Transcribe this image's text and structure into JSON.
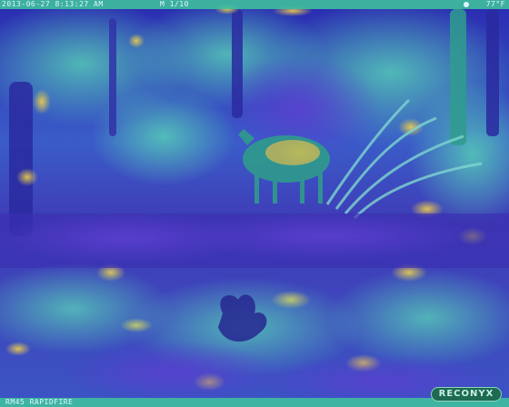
{
  "overlay": {
    "timestamp": "2013-06-27 8:13:27 AM",
    "frame_counter": "M 1/10",
    "temperature": "77°F",
    "moon_phase_icon": "moon-icon",
    "camera_model": "RM45 RAPIDFIRE",
    "brand_logo": "RECONYX"
  },
  "colors": {
    "hud_band": "#3fbf9f",
    "hud_text": "#dff6ff",
    "logo_bg": "#1e6a53",
    "logo_text": "#c8f1e0",
    "deep_blue": "#1b1f8a",
    "violet": "#5a4fcf",
    "teal": "#39b6a8",
    "yellow": "#e3c54a"
  }
}
